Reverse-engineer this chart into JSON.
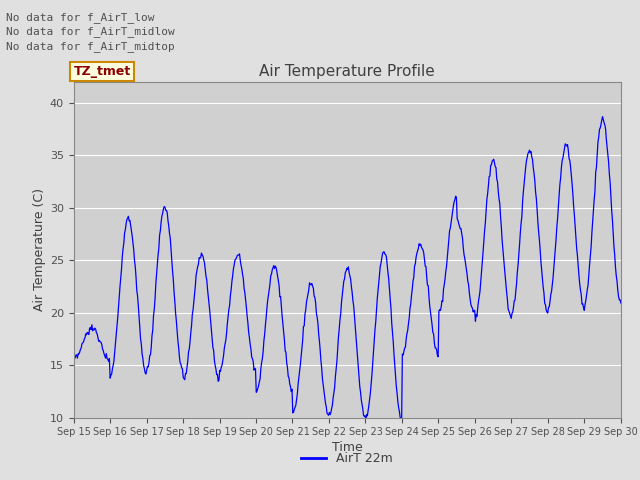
{
  "title": "Air Temperature Profile",
  "xlabel": "Time",
  "ylabel": "Air Temperature (C)",
  "ylim": [
    10,
    42
  ],
  "yticks": [
    10,
    15,
    20,
    25,
    30,
    35,
    40
  ],
  "line_color": "blue",
  "line_label": "AirT 22m",
  "fig_facecolor": "#e0e0e0",
  "axes_facecolor": "#d0d0d0",
  "legend_text_lines": [
    "No data for f_AirT_low",
    "No data for f_AirT_midlow",
    "No data for f_AirT_midtop"
  ],
  "legend_box_label": "TZ_tmet",
  "xtick_labels": [
    "Sep 15",
    "Sep 16",
    "Sep 17",
    "Sep 18",
    "Sep 19",
    "Sep 20",
    "Sep 21",
    "Sep 22",
    "Sep 23",
    "Sep 24",
    "Sep 25",
    "Sep 26",
    "Sep 27",
    "Sep 28",
    "Sep 29",
    "Sep 30"
  ]
}
